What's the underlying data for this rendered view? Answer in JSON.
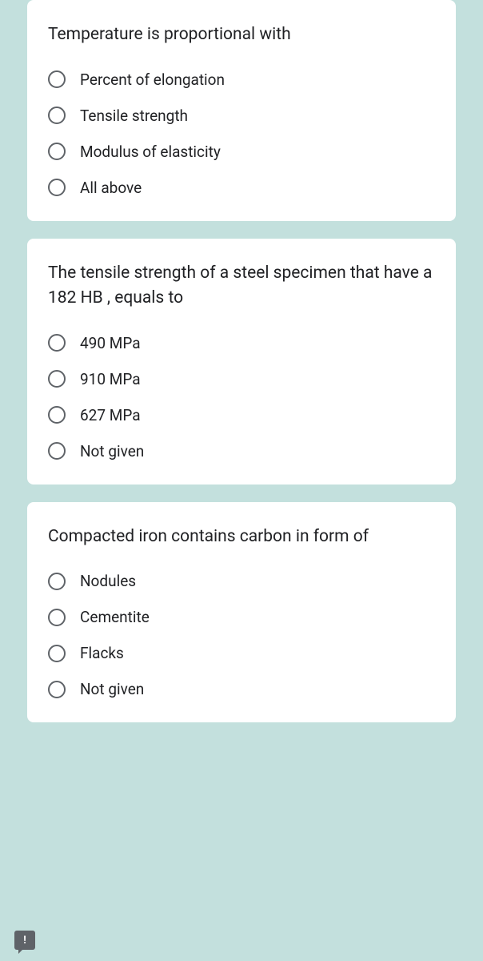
{
  "questions": [
    {
      "prompt": "Temperature is proportional with",
      "options": [
        "Percent of elongation",
        "Tensile strength",
        "Modulus of elasticity",
        "All above"
      ]
    },
    {
      "prompt": "The tensile strength of a steel specimen that have a 182 HB , equals to",
      "options": [
        "490 MPa",
        "910 MPa",
        "627 MPa",
        "Not given"
      ]
    },
    {
      "prompt": "Compacted iron contains carbon in form of",
      "options": [
        "Nodules",
        "Cementite",
        "Flacks",
        "Not given"
      ]
    }
  ],
  "feedback_icon": "!"
}
